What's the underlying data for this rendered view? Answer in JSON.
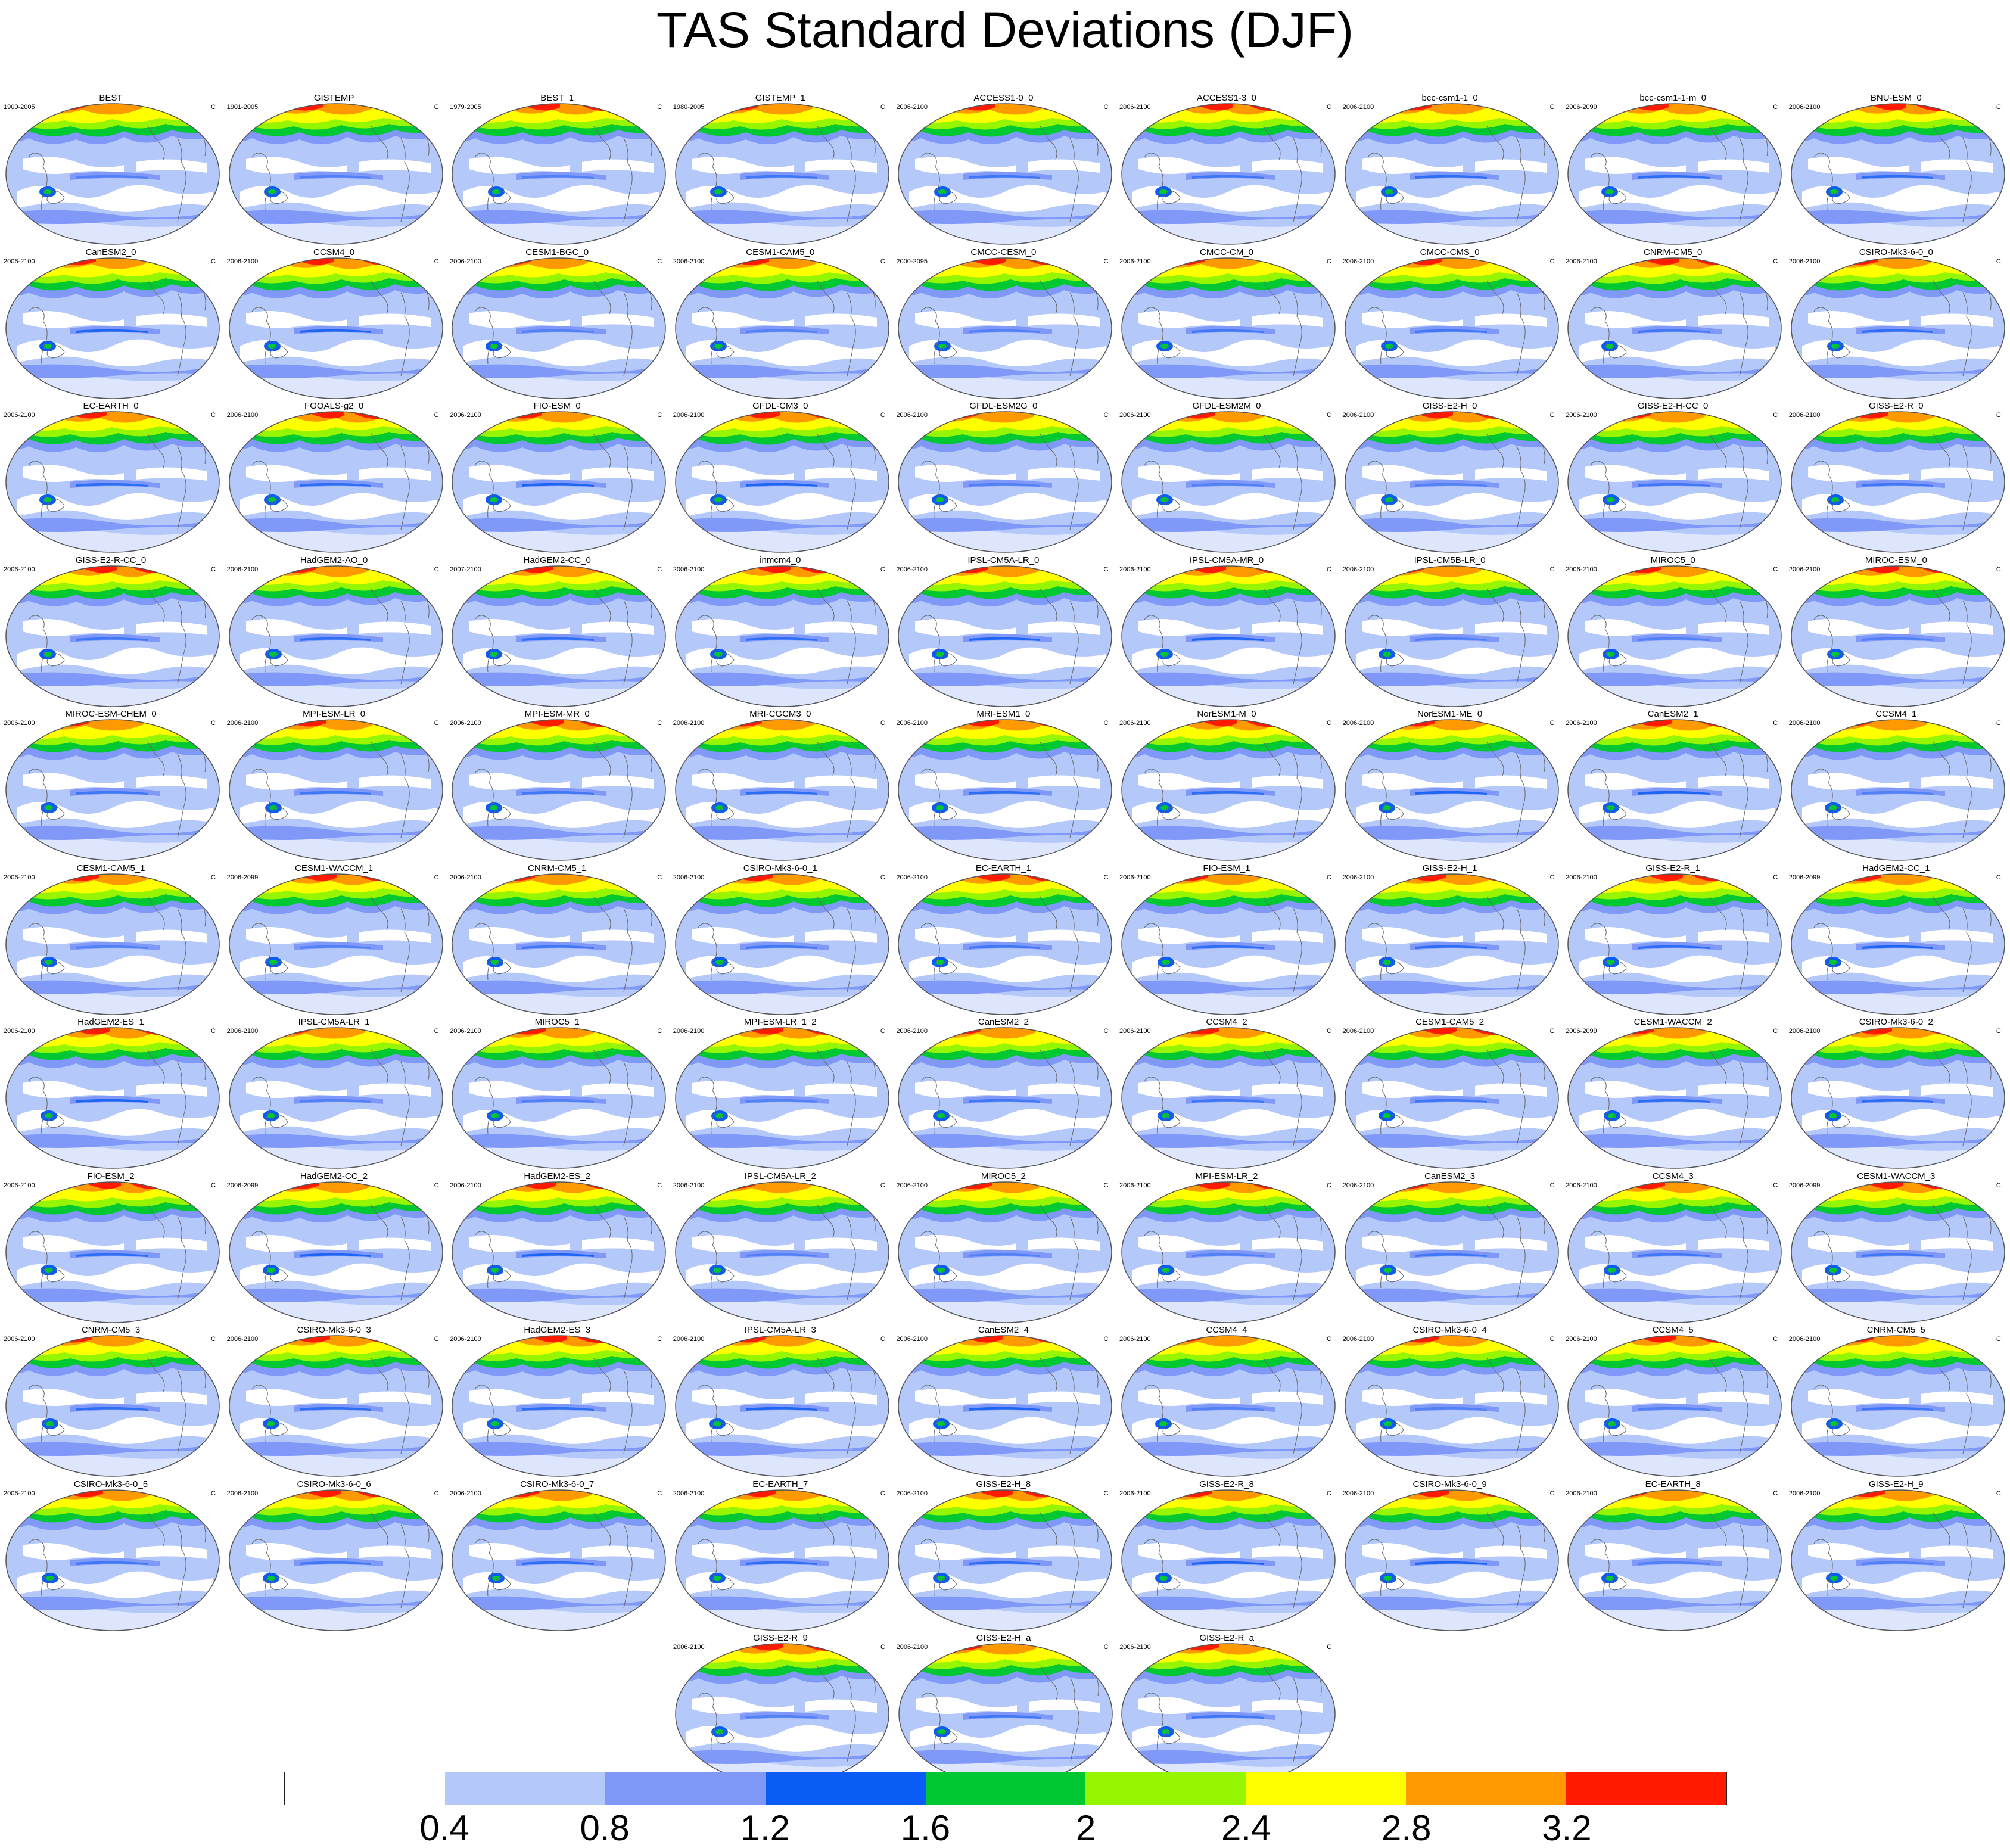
{
  "title": "TAS Standard Deviations (DJF)",
  "unit": "C",
  "colorbar": {
    "colors": [
      "#ffffff",
      "#b4c8fa",
      "#8098f8",
      "#0a5cf5",
      "#00c832",
      "#96f500",
      "#ffff00",
      "#ff9900",
      "#ff1a00"
    ],
    "labels": [
      "0.4",
      "0.8",
      "1.2",
      "1.6",
      "2",
      "2.4",
      "2.8",
      "3.2"
    ]
  },
  "panels": [
    {
      "name": "BEST",
      "years": "1900-2005"
    },
    {
      "name": "GISTEMP",
      "years": "1901-2005"
    },
    {
      "name": "BEST_1",
      "years": "1979-2005"
    },
    {
      "name": "GISTEMP_1",
      "years": "1980-2005"
    },
    {
      "name": "ACCESS1-0_0",
      "years": "2006-2100"
    },
    {
      "name": "ACCESS1-3_0",
      "years": "2006-2100"
    },
    {
      "name": "bcc-csm1-1_0",
      "years": "2006-2100"
    },
    {
      "name": "bcc-csm1-1-m_0",
      "years": "2006-2099"
    },
    {
      "name": "BNU-ESM_0",
      "years": "2006-2100"
    },
    {
      "name": "CanESM2_0",
      "years": "2006-2100"
    },
    {
      "name": "CCSM4_0",
      "years": "2006-2100"
    },
    {
      "name": "CESM1-BGC_0",
      "years": "2006-2100"
    },
    {
      "name": "CESM1-CAM5_0",
      "years": "2006-2100"
    },
    {
      "name": "CMCC-CESM_0",
      "years": "2000-2095"
    },
    {
      "name": "CMCC-CM_0",
      "years": "2006-2100"
    },
    {
      "name": "CMCC-CMS_0",
      "years": "2006-2100"
    },
    {
      "name": "CNRM-CM5_0",
      "years": "2006-2100"
    },
    {
      "name": "CSIRO-Mk3-6-0_0",
      "years": "2006-2100"
    },
    {
      "name": "EC-EARTH_0",
      "years": "2006-2100"
    },
    {
      "name": "FGOALS-g2_0",
      "years": "2006-2100"
    },
    {
      "name": "FIO-ESM_0",
      "years": "2006-2100"
    },
    {
      "name": "GFDL-CM3_0",
      "years": "2006-2100"
    },
    {
      "name": "GFDL-ESM2G_0",
      "years": "2006-2100"
    },
    {
      "name": "GFDL-ESM2M_0",
      "years": "2006-2100"
    },
    {
      "name": "GISS-E2-H_0",
      "years": "2006-2100"
    },
    {
      "name": "GISS-E2-H-CC_0",
      "years": "2006-2100"
    },
    {
      "name": "GISS-E2-R_0",
      "years": "2006-2100"
    },
    {
      "name": "GISS-E2-R-CC_0",
      "years": "2006-2100"
    },
    {
      "name": "HadGEM2-AO_0",
      "years": "2006-2100"
    },
    {
      "name": "HadGEM2-CC_0",
      "years": "2007-2100"
    },
    {
      "name": "inmcm4_0",
      "years": "2006-2100"
    },
    {
      "name": "IPSL-CM5A-LR_0",
      "years": "2006-2100"
    },
    {
      "name": "IPSL-CM5A-MR_0",
      "years": "2006-2100"
    },
    {
      "name": "IPSL-CM5B-LR_0",
      "years": "2006-2100"
    },
    {
      "name": "MIROC5_0",
      "years": "2006-2100"
    },
    {
      "name": "MIROC-ESM_0",
      "years": "2006-2100"
    },
    {
      "name": "MIROC-ESM-CHEM_0",
      "years": "2006-2100"
    },
    {
      "name": "MPI-ESM-LR_0",
      "years": "2006-2100"
    },
    {
      "name": "MPI-ESM-MR_0",
      "years": "2006-2100"
    },
    {
      "name": "MRI-CGCM3_0",
      "years": "2006-2100"
    },
    {
      "name": "MRI-ESM1_0",
      "years": "2006-2100"
    },
    {
      "name": "NorESM1-M_0",
      "years": "2006-2100"
    },
    {
      "name": "NorESM1-ME_0",
      "years": "2006-2100"
    },
    {
      "name": "CanESM2_1",
      "years": "2006-2100"
    },
    {
      "name": "CCSM4_1",
      "years": "2006-2100"
    },
    {
      "name": "CESM1-CAM5_1",
      "years": "2006-2100"
    },
    {
      "name": "CESM1-WACCM_1",
      "years": "2006-2099"
    },
    {
      "name": "CNRM-CM5_1",
      "years": "2006-2100"
    },
    {
      "name": "CSIRO-Mk3-6-0_1",
      "years": "2006-2100"
    },
    {
      "name": "EC-EARTH_1",
      "years": "2006-2100"
    },
    {
      "name": "FIO-ESM_1",
      "years": "2006-2100"
    },
    {
      "name": "GISS-E2-H_1",
      "years": "2006-2100"
    },
    {
      "name": "GISS-E2-R_1",
      "years": "2006-2100"
    },
    {
      "name": "HadGEM2-CC_1",
      "years": "2006-2099"
    },
    {
      "name": "HadGEM2-ES_1",
      "years": "2006-2100"
    },
    {
      "name": "IPSL-CM5A-LR_1",
      "years": "2006-2100"
    },
    {
      "name": "MIROC5_1",
      "years": "2006-2100"
    },
    {
      "name": "MPI-ESM-LR_1_2",
      "years": "2006-2100"
    },
    {
      "name": "CanESM2_2",
      "years": "2006-2100"
    },
    {
      "name": "CCSM4_2",
      "years": "2006-2100"
    },
    {
      "name": "CESM1-CAM5_2",
      "years": "2006-2100"
    },
    {
      "name": "CESM1-WACCM_2",
      "years": "2006-2099"
    },
    {
      "name": "CSIRO-Mk3-6-0_2",
      "years": "2006-2100"
    },
    {
      "name": "FIO-ESM_2",
      "years": "2006-2100"
    },
    {
      "name": "HadGEM2-CC_2",
      "years": "2006-2099"
    },
    {
      "name": "HadGEM2-ES_2",
      "years": "2006-2100"
    },
    {
      "name": "IPSL-CM5A-LR_2",
      "years": "2006-2100"
    },
    {
      "name": "MIROC5_2",
      "years": "2006-2100"
    },
    {
      "name": "MPI-ESM-LR_2",
      "years": "2006-2100"
    },
    {
      "name": "CanESM2_3",
      "years": "2006-2100"
    },
    {
      "name": "CCSM4_3",
      "years": "2006-2100"
    },
    {
      "name": "CESM1-WACCM_3",
      "years": "2006-2099"
    },
    {
      "name": "CNRM-CM5_3",
      "years": "2006-2100"
    },
    {
      "name": "CSIRO-Mk3-6-0_3",
      "years": "2006-2100"
    },
    {
      "name": "HadGEM2-ES_3",
      "years": "2006-2100"
    },
    {
      "name": "IPSL-CM5A-LR_3",
      "years": "2006-2100"
    },
    {
      "name": "CanESM2_4",
      "years": "2006-2100"
    },
    {
      "name": "CCSM4_4",
      "years": "2006-2100"
    },
    {
      "name": "CSIRO-Mk3-6-0_4",
      "years": "2006-2100"
    },
    {
      "name": "CCSM4_5",
      "years": "2006-2100"
    },
    {
      "name": "CNRM-CM5_5",
      "years": "2006-2100"
    },
    {
      "name": "CSIRO-Mk3-6-0_5",
      "years": "2006-2100"
    },
    {
      "name": "CSIRO-Mk3-6-0_6",
      "years": "2006-2100"
    },
    {
      "name": "CSIRO-Mk3-6-0_7",
      "years": "2006-2100"
    },
    {
      "name": "EC-EARTH_7",
      "years": "2006-2100"
    },
    {
      "name": "GISS-E2-H_8",
      "years": "2006-2100"
    },
    {
      "name": "GISS-E2-R_8",
      "years": "2006-2100"
    },
    {
      "name": "CSIRO-Mk3-6-0_9",
      "years": "2006-2100"
    },
    {
      "name": "EC-EARTH_8",
      "years": "2006-2100"
    },
    {
      "name": "GISS-E2-H_9",
      "years": "2006-2100"
    },
    {
      "name": "GISS-E2-R_9",
      "years": "2006-2100"
    },
    {
      "name": "GISS-E2-H_a",
      "years": "2006-2100"
    },
    {
      "name": "GISS-E2-R_a",
      "years": "2006-2100"
    }
  ]
}
